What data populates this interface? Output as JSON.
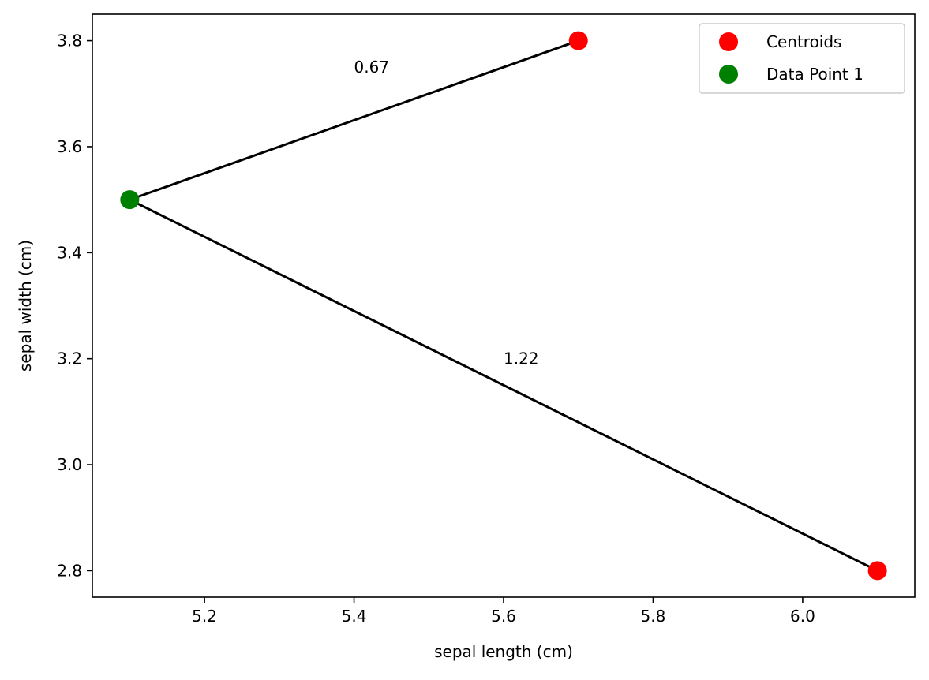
{
  "chart_data": {
    "type": "scatter",
    "title": "",
    "xlabel": "sepal length (cm)",
    "ylabel": "sepal width (cm)",
    "xlim": [
      5.05,
      6.15
    ],
    "ylim": [
      2.75,
      3.85
    ],
    "xticks": [
      5.2,
      5.4,
      5.6,
      5.8,
      6.0
    ],
    "xtick_labels": [
      "5.2",
      "5.4",
      "5.6",
      "5.8",
      "6.0"
    ],
    "yticks": [
      2.8,
      3.0,
      3.2,
      3.4,
      3.6,
      3.8
    ],
    "ytick_labels": [
      "2.8",
      "3.0",
      "3.2",
      "3.4",
      "3.6",
      "3.8"
    ],
    "grid": false,
    "legend_position": "top-right",
    "series": [
      {
        "name": "Centroids",
        "color": "#ff0000",
        "points": [
          {
            "x": 5.7,
            "y": 3.8
          },
          {
            "x": 6.1,
            "y": 2.8
          }
        ]
      },
      {
        "name": "Data Point 1",
        "color": "#008000",
        "points": [
          {
            "x": 5.1,
            "y": 3.5
          }
        ]
      }
    ],
    "lines": [
      {
        "from": {
          "x": 5.1,
          "y": 3.5
        },
        "to": {
          "x": 5.7,
          "y": 3.8
        },
        "color": "#000000"
      },
      {
        "from": {
          "x": 5.1,
          "y": 3.5
        },
        "to": {
          "x": 6.1,
          "y": 2.8
        },
        "color": "#000000"
      }
    ],
    "annotations": [
      {
        "text": "0.67",
        "x": 5.4,
        "y": 3.75
      },
      {
        "text": "1.22",
        "x": 5.6,
        "y": 3.2
      }
    ]
  }
}
